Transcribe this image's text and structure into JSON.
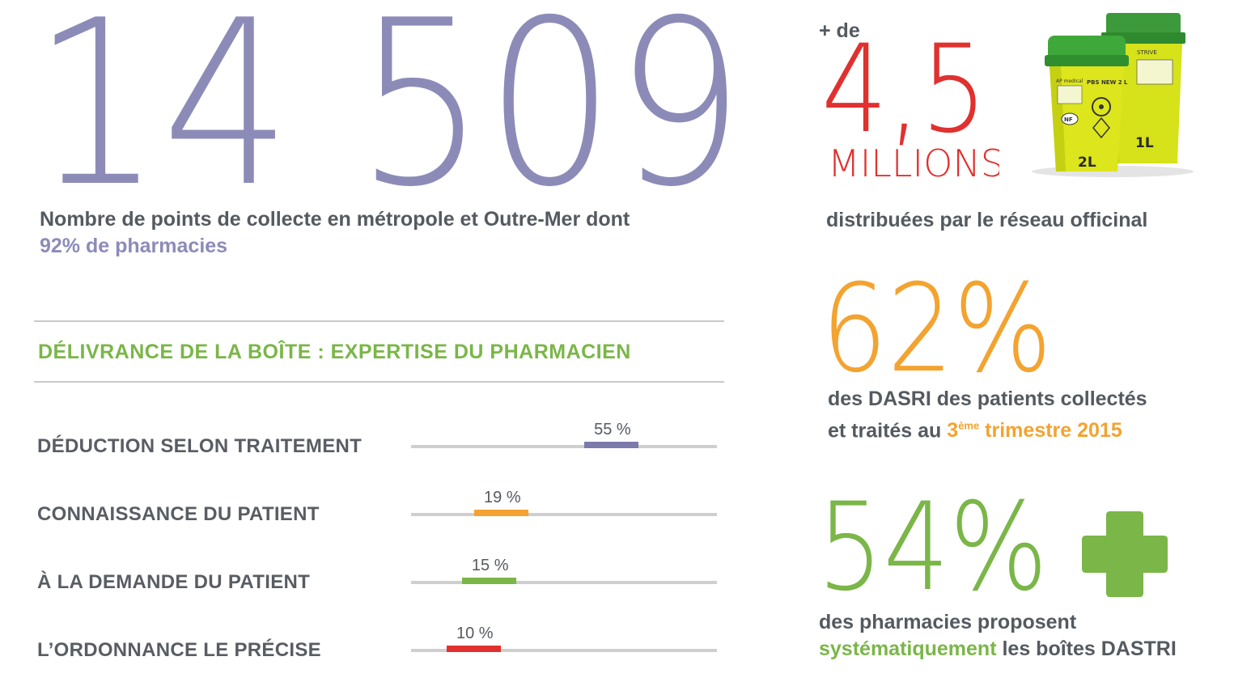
{
  "main": {
    "big_number": "14 509",
    "big_desc": "Nombre de points de collecte en métropole et Outre-Mer dont",
    "big_desc_highlight": "92% de pharmacies"
  },
  "section": {
    "title": "DÉLIVRANCE DE LA BOÎTE : EXPERTISE DU PHARMACIEN"
  },
  "bars": [
    {
      "label": "DÉDUCTION SELON TRAITEMENT",
      "pct_label": "55 %",
      "value": 55,
      "color": "#7b7aab"
    },
    {
      "label": "CONNAISSANCE DU PATIENT",
      "pct_label": "19 %",
      "value": 19,
      "color": "#f3a330"
    },
    {
      "label": "À LA DEMANDE DU PATIENT",
      "pct_label": "15 %",
      "value": 15,
      "color": "#7ab648"
    },
    {
      "label": "L’ORDONNANCE LE PRÉCISE",
      "pct_label": "10 %",
      "value": 10,
      "color": "#e0312f"
    }
  ],
  "stat_millions": {
    "prefix": "+ de",
    "number": "4,5",
    "unit": "MILLIONS",
    "desc": "distribuées par le réseau officinal",
    "color": "#e0312f"
  },
  "boxes": {
    "box2_text": "2L",
    "box1_text": "1L",
    "brand": "AP medical",
    "model": "PBS NEW 2 L",
    "nf": "NF",
    "box1_brand": "STRIVE"
  },
  "stat_62": {
    "number": "62%",
    "desc_line1": "des DASRI des patients collectés",
    "desc_line2_pre": "et traités au",
    "desc_highlight_num": "3",
    "desc_highlight_sup": "ème",
    "desc_highlight_rest": " trimestre 2015",
    "color": "#f3a330"
  },
  "stat_54": {
    "number": "54%",
    "desc_line1": "des pharmacies proposent",
    "desc_highlight": "systématiquement",
    "desc_rest": " les boîtes DASTRI",
    "color": "#7ab648"
  },
  "colors": {
    "purple": "#8c8bb8",
    "gray_text": "#555a60",
    "green": "#7ab648",
    "orange": "#f3a330",
    "red": "#e0312f"
  }
}
